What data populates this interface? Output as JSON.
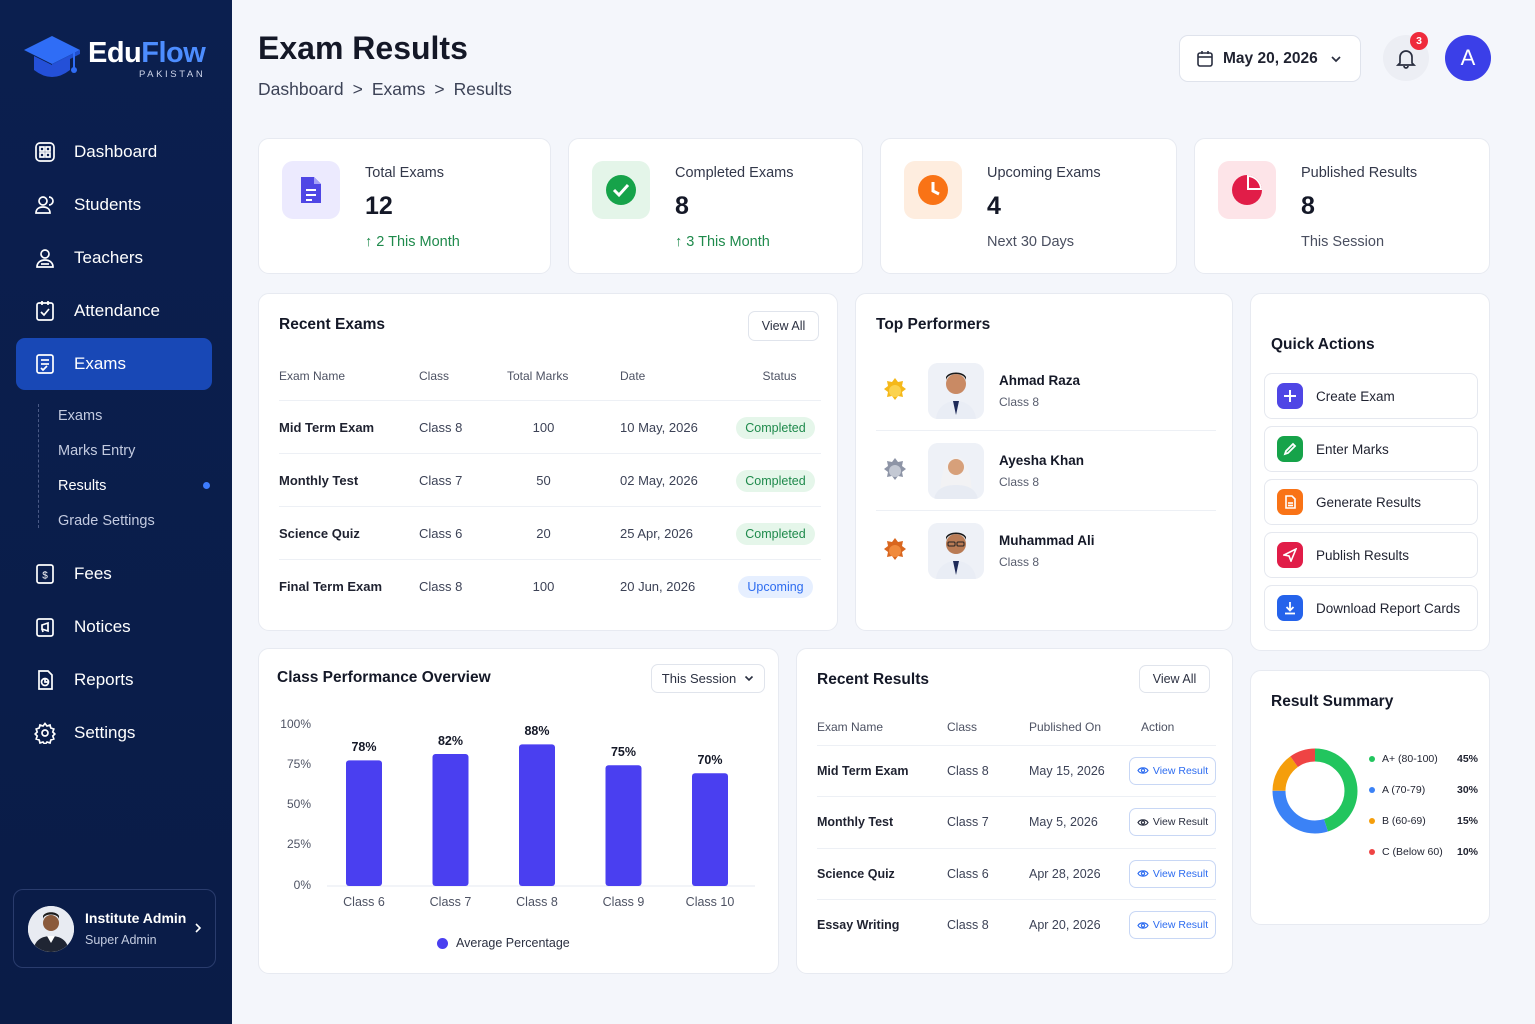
{
  "brand": {
    "name_part1": "Edu",
    "name_part2": "Flow",
    "subtitle": "PAKISTAN"
  },
  "sidebar": {
    "items": [
      {
        "label": "Dashboard",
        "icon": "dashboard-icon"
      },
      {
        "label": "Students",
        "icon": "students-icon"
      },
      {
        "label": "Teachers",
        "icon": "teachers-icon"
      },
      {
        "label": "Attendance",
        "icon": "attendance-icon"
      },
      {
        "label": "Exams",
        "icon": "exams-icon",
        "active": true
      },
      {
        "label": "Fees",
        "icon": "fees-icon"
      },
      {
        "label": "Notices",
        "icon": "notices-icon"
      },
      {
        "label": "Reports",
        "icon": "reports-icon"
      },
      {
        "label": "Settings",
        "icon": "settings-icon"
      }
    ],
    "sub_items": [
      {
        "label": "Exams"
      },
      {
        "label": "Marks Entry"
      },
      {
        "label": "Results",
        "active": true
      },
      {
        "label": "Grade Settings"
      }
    ],
    "user": {
      "name": "Institute Admin",
      "role": "Super Admin"
    }
  },
  "header": {
    "title": "Exam Results",
    "breadcrumb": [
      "Dashboard",
      ">",
      "Exams",
      ">",
      "Results"
    ],
    "date": "May 20, 2026",
    "notification_count": "3",
    "avatar_initial": "A"
  },
  "stats": [
    {
      "label": "Total Exams",
      "value": "12",
      "note_arrow": "↑",
      "note": "2 This Month",
      "color": "#4f46e5"
    },
    {
      "label": "Completed Exams",
      "value": "8",
      "note_arrow": "↑",
      "note": "3 This Month",
      "color": "#16a34a"
    },
    {
      "label": "Upcoming Exams",
      "value": "4",
      "note": "Next 30 Days",
      "color": "#f97316"
    },
    {
      "label": "Published Results",
      "value": "8",
      "note": "This Session",
      "color": "#e11d48"
    }
  ],
  "recent_exams": {
    "title": "Recent Exams",
    "view_all": "View All",
    "columns": [
      "Exam Name",
      "Class",
      "Total Marks",
      "Date",
      "Status"
    ],
    "rows": [
      {
        "name": "Mid Term Exam",
        "class": "Class 8",
        "marks": "100",
        "date": "10 May, 2026",
        "status": "Completed"
      },
      {
        "name": "Monthly Test",
        "class": "Class 7",
        "marks": "50",
        "date": "02 May, 2026",
        "status": "Completed"
      },
      {
        "name": "Science Quiz",
        "class": "Class 6",
        "marks": "20",
        "date": "25 Apr, 2026",
        "status": "Completed"
      },
      {
        "name": "Final Term Exam",
        "class": "Class 8",
        "marks": "100",
        "date": "20 Jun, 2026",
        "status": "Upcoming"
      }
    ]
  },
  "top_performers": {
    "title": "Top Performers",
    "items": [
      {
        "name": "Ahmad Raza",
        "class": "Class 8",
        "medal": "gold"
      },
      {
        "name": "Ayesha Khan",
        "class": "Class 8",
        "medal": "silver"
      },
      {
        "name": "Muhammad Ali",
        "class": "Class 8",
        "medal": "bronze"
      }
    ]
  },
  "quick_actions": {
    "title": "Quick Actions",
    "items": [
      {
        "label": "Create Exam",
        "icon": "plus-icon",
        "color": "#4f46e5"
      },
      {
        "label": "Enter Marks",
        "icon": "pencil-icon",
        "color": "#16a34a"
      },
      {
        "label": "Generate Results",
        "icon": "document-icon",
        "color": "#f97316"
      },
      {
        "label": "Publish Results",
        "icon": "send-icon",
        "color": "#e11d48"
      },
      {
        "label": "Download Report Cards",
        "icon": "download-icon",
        "color": "#2563eb"
      }
    ]
  },
  "performance": {
    "title": "Class Performance Overview",
    "filter": "This Session",
    "legend": "Average Percentage"
  },
  "chart_data": {
    "type": "bar",
    "categories": [
      "Class 6",
      "Class 7",
      "Class 8",
      "Class 9",
      "Class 10"
    ],
    "values": [
      78,
      82,
      88,
      75,
      70
    ],
    "value_labels": [
      "78%",
      "82%",
      "88%",
      "75%",
      "70%"
    ],
    "yticks": [
      "100%",
      "75%",
      "50%",
      "25%",
      "0%"
    ],
    "ylim": [
      0,
      100
    ],
    "series": [
      {
        "name": "Average Percentage",
        "values": [
          78,
          82,
          88,
          75,
          70
        ]
      }
    ],
    "color": "#4a3ff0",
    "legend_position": "bottom",
    "grid": false
  },
  "recent_results": {
    "title": "Recent Results",
    "view_all": "View All",
    "columns": [
      "Exam Name",
      "Class",
      "Published On",
      "Action"
    ],
    "action_label": "View Result",
    "rows": [
      {
        "name": "Mid Term Exam",
        "class": "Class 8",
        "date": "May 15, 2026"
      },
      {
        "name": "Monthly Test",
        "class": "Class 7",
        "date": "May 5, 2026"
      },
      {
        "name": "Science Quiz",
        "class": "Class 6",
        "date": "Apr 28, 2026"
      },
      {
        "name": "Essay Writing",
        "class": "Class 8",
        "date": "Apr 20, 2026"
      }
    ]
  },
  "result_summary": {
    "title": "Result Summary",
    "items": [
      {
        "label": "A+ (80-100)",
        "pct": "45%",
        "value": 45,
        "color": "#22c55e"
      },
      {
        "label": "A (70-79)",
        "pct": "30%",
        "value": 30,
        "color": "#3b82f6"
      },
      {
        "label": "B (60-69)",
        "pct": "15%",
        "value": 15,
        "color": "#f59e0b"
      },
      {
        "label": "C (Below 60)",
        "pct": "10%",
        "value": 10,
        "color": "#ef4444"
      }
    ]
  }
}
